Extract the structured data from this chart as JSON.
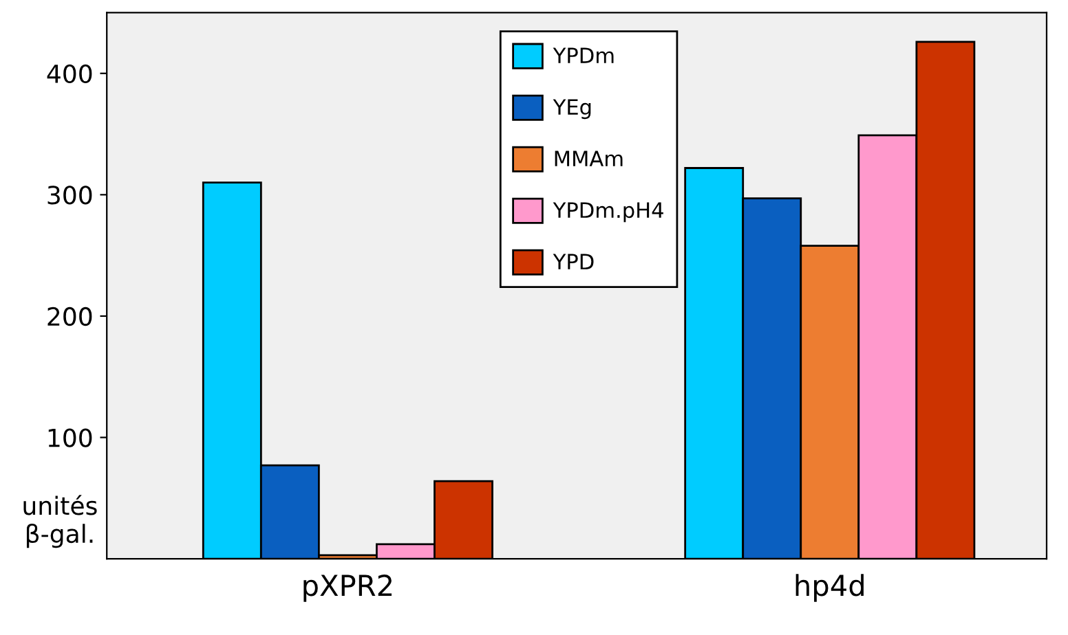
{
  "chart_data": {
    "type": "bar",
    "ylabel": "unités β-gal.",
    "categories": [
      "pXPR2",
      "hp4d"
    ],
    "series": [
      {
        "name": "YPDm",
        "color": "#00ccff",
        "values": [
          310,
          322
        ]
      },
      {
        "name": "YEg",
        "color": "#0a5fc0",
        "values": [
          77,
          297
        ]
      },
      {
        "name": "MMAm",
        "color": "#ed7d31",
        "values": [
          3,
          258
        ]
      },
      {
        "name": "YPDm.pH4",
        "color": "#ff99cc",
        "values": [
          12,
          349
        ]
      },
      {
        "name": "YPD",
        "color": "#cc3300",
        "values": [
          64,
          426
        ]
      }
    ],
    "ylim": [
      0,
      450
    ],
    "yticks": [
      100,
      200,
      300,
      400
    ],
    "grid": false,
    "legend": "top"
  }
}
